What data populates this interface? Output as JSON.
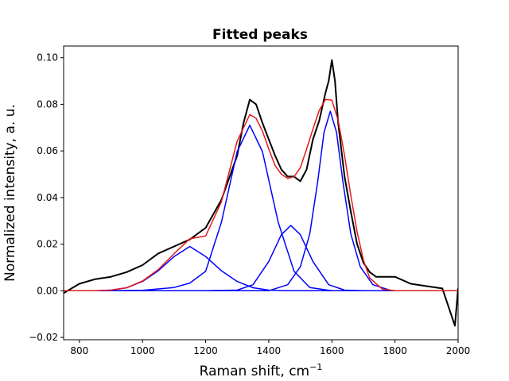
{
  "chart_data": {
    "type": "line",
    "title": "Fitted peaks",
    "xlabel": "Raman shift, cm",
    "xlabel_superscript": "−1",
    "ylabel": "Normalized intensity, a. u.",
    "xlim": [
      750,
      2000
    ],
    "ylim": [
      -0.021,
      0.105
    ],
    "xticks": [
      800,
      1000,
      1200,
      1400,
      1600,
      1800,
      2000
    ],
    "yticks": [
      -0.02,
      0.0,
      0.02,
      0.04,
      0.06,
      0.08,
      0.1
    ],
    "ytick_labels": [
      "−0.02",
      "0.00",
      "0.02",
      "0.04",
      "0.06",
      "0.08",
      "0.10"
    ],
    "grid": false,
    "legend": "none",
    "series": [
      {
        "role": "measured",
        "color": "#000000",
        "x": [
          750,
          800,
          850,
          900,
          950,
          1000,
          1050,
          1100,
          1150,
          1200,
          1250,
          1300,
          1320,
          1340,
          1360,
          1380,
          1400,
          1420,
          1440,
          1460,
          1480,
          1500,
          1520,
          1540,
          1560,
          1580,
          1590,
          1600,
          1610,
          1620,
          1640,
          1660,
          1680,
          1700,
          1720,
          1740,
          1760,
          1800,
          1850,
          1900,
          1950,
          1990,
          2000
        ],
        "values": [
          -0.001,
          0.003,
          0.005,
          0.006,
          0.008,
          0.011,
          0.016,
          0.019,
          0.022,
          0.027,
          0.039,
          0.058,
          0.072,
          0.082,
          0.08,
          0.072,
          0.065,
          0.058,
          0.052,
          0.049,
          0.049,
          0.047,
          0.052,
          0.065,
          0.073,
          0.085,
          0.09,
          0.099,
          0.09,
          0.072,
          0.049,
          0.034,
          0.02,
          0.012,
          0.008,
          0.006,
          0.006,
          0.006,
          0.003,
          0.002,
          0.001,
          -0.015,
          0.001
        ]
      },
      {
        "role": "component",
        "color": "#0000ff",
        "center": 1150,
        "amplitude": 0.019,
        "sigma": 70,
        "x": [
          750,
          800,
          850,
          900,
          950,
          1000,
          1050,
          1100,
          1150,
          1200,
          1250,
          1300,
          1350,
          1400,
          1450,
          1500,
          1600,
          1700,
          1800,
          1900,
          2000
        ],
        "values": [
          0.0,
          0.0,
          0.0,
          0.0003,
          0.0013,
          0.004,
          0.0086,
          0.0147,
          0.019,
          0.0147,
          0.0086,
          0.004,
          0.0013,
          0.0003,
          0.0,
          0.0,
          0.0,
          0.0,
          0.0,
          0.0,
          0.0
        ]
      },
      {
        "role": "component",
        "color": "#0000ff",
        "center": 1340,
        "amplitude": 0.071,
        "sigma": 68,
        "x": [
          750,
          900,
          1000,
          1100,
          1150,
          1200,
          1250,
          1300,
          1340,
          1380,
          1430,
          1480,
          1530,
          1600,
          1700,
          2000
        ],
        "values": [
          0.0,
          0.0,
          0.0002,
          0.0014,
          0.0033,
          0.0084,
          0.0294,
          0.0597,
          0.071,
          0.0597,
          0.0294,
          0.0084,
          0.0014,
          0.0,
          0.0,
          0.0
        ]
      },
      {
        "role": "component",
        "color": "#0000ff",
        "center": 1470,
        "amplitude": 0.028,
        "sigma": 55,
        "x": [
          750,
          1200,
          1300,
          1350,
          1400,
          1440,
          1470,
          1500,
          1540,
          1590,
          1640,
          1700,
          2000
        ],
        "values": [
          0.0,
          0.0,
          0.0003,
          0.0026,
          0.0125,
          0.0241,
          0.028,
          0.0241,
          0.0125,
          0.0026,
          0.0003,
          0.0,
          0.0
        ]
      },
      {
        "role": "component",
        "color": "#0000ff",
        "center": 1595,
        "amplitude": 0.077,
        "sigma": 40,
        "x": [
          750,
          1400,
          1460,
          1500,
          1530,
          1555,
          1575,
          1595,
          1615,
          1635,
          1660,
          1690,
          1730,
          1790,
          2000
        ],
        "values": [
          0.0,
          0.0,
          0.0026,
          0.0103,
          0.0244,
          0.0467,
          0.0679,
          0.077,
          0.0679,
          0.0467,
          0.0244,
          0.0103,
          0.0026,
          0.0,
          0.0
        ]
      },
      {
        "role": "fit",
        "color": "#e41a1c",
        "x": [
          750,
          850,
          900,
          950,
          1000,
          1050,
          1100,
          1150,
          1200,
          1250,
          1300,
          1340,
          1360,
          1380,
          1400,
          1420,
          1440,
          1460,
          1480,
          1500,
          1520,
          1540,
          1560,
          1580,
          1600,
          1620,
          1640,
          1660,
          1680,
          1700,
          1720,
          1760,
          1800,
          2000
        ],
        "values": [
          0.0,
          0.0,
          0.0003,
          0.0013,
          0.0042,
          0.0091,
          0.0159,
          0.0223,
          0.0235,
          0.0382,
          0.0642,
          0.0756,
          0.074,
          0.0685,
          0.0609,
          0.0537,
          0.05,
          0.0482,
          0.0489,
          0.0528,
          0.0608,
          0.0694,
          0.0774,
          0.0821,
          0.0818,
          0.0731,
          0.0581,
          0.0409,
          0.0253,
          0.0131,
          0.0055,
          0.0007,
          0.0,
          0.0
        ]
      }
    ]
  }
}
